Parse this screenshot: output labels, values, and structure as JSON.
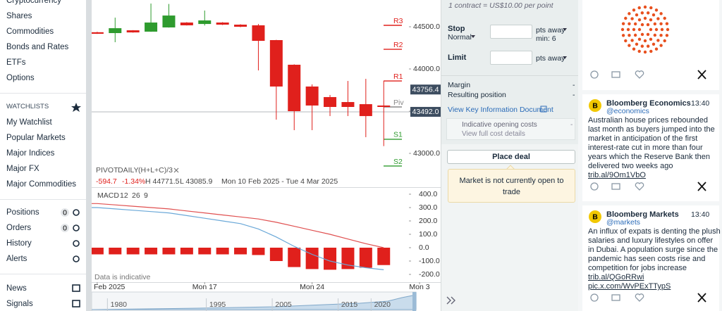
{
  "sidebar": {
    "markets": [
      "Cryptocurrency",
      "Shares",
      "Commodities",
      "Bonds and Rates",
      "ETFs",
      "Options"
    ],
    "watchlists_title": "WATCHLISTS",
    "watchlists": [
      "My Watchlist",
      "Popular Markets",
      "Major Indices",
      "Major FX",
      "Major Commodities"
    ],
    "account": [
      {
        "label": "Positions",
        "count": 0
      },
      {
        "label": "Orders",
        "count": 0
      },
      {
        "label": "History"
      },
      {
        "label": "Alerts"
      }
    ],
    "tools": [
      "News",
      "Signals"
    ]
  },
  "chart_data": {
    "type": "candlestick",
    "up_color": "#2e9b2e",
    "down_color": "#e0201c",
    "candles": {
      "open": [
        44435,
        44425,
        44458,
        44442,
        44492,
        44550,
        44533,
        44550,
        44525,
        44517,
        44342,
        44050,
        43792,
        43667,
        43608,
        43583,
        43567
      ],
      "high": [
        44440,
        44608,
        44460,
        44775,
        44770,
        44555,
        44692,
        44555,
        44530,
        44533,
        44345,
        44055,
        43817,
        43692,
        43858,
        43883,
        43858
      ],
      "low": [
        44415,
        44317,
        44430,
        44440,
        44490,
        44515,
        44515,
        44520,
        44495,
        43983,
        43400,
        43275,
        43275,
        43442,
        43442,
        43192,
        43086
      ],
      "close": [
        44417,
        44483,
        44433,
        44550,
        44633,
        44517,
        44575,
        44525,
        44500,
        44333,
        43792,
        43500,
        43567,
        43550,
        43550,
        43442,
        43550
      ]
    },
    "xlim": [
      -0.31,
      19.18
    ],
    "xticks": [
      {
        "value": 0,
        "label": "Feb 2025"
      },
      {
        "value": 6,
        "label": "Mon 17"
      },
      {
        "value": 12,
        "label": "Mon 24"
      },
      {
        "value": 18,
        "label": "Mon 3"
      }
    ],
    "ylim": [
      42608,
      44817
    ],
    "yticks": [
      {
        "value": 44500,
        "label": "44500.0"
      },
      {
        "value": 44000,
        "label": "44000.0"
      },
      {
        "value": 43500,
        "label": "43500.0"
      },
      {
        "value": 43000,
        "label": "43000.0"
      }
    ],
    "pivots": [
      {
        "name": "R3",
        "value": 44517,
        "color": "#e0201c"
      },
      {
        "name": "R2",
        "value": 44233,
        "color": "#e0201c"
      },
      {
        "name": "R1",
        "value": 43858,
        "color": "#e0201c"
      },
      {
        "name": "Piv",
        "value": 43550,
        "color": "#888888"
      },
      {
        "name": "S1",
        "value": 43167,
        "color": "#2e9b2e"
      },
      {
        "name": "S2",
        "value": 42850,
        "color": "#2e9b2e"
      }
    ],
    "price_tags": [
      {
        "value": 43756.4,
        "label": "43756.4"
      },
      {
        "value": 43492.0,
        "label": "43492.0"
      }
    ],
    "indicator": {
      "name": "PIVOT",
      "period": "DAILY",
      "formula": "(H+L+C)/3"
    },
    "change": {
      "value": -594.7,
      "label": "-594.7"
    },
    "change_pct": {
      "value": -1.34,
      "label": "-1.34%"
    },
    "high": {
      "value": 44771.5,
      "label": "H 44771.5"
    },
    "low": {
      "value": 43085.9,
      "label": "L 43085.9"
    },
    "range": "Mon 10 Feb 2025 - Tue 4 Mar 2025",
    "note": "Data is indicative",
    "macd": {
      "title": "MACD",
      "params": [
        12,
        26,
        9
      ],
      "histogram": [
        -50,
        -50,
        -50,
        -50,
        -50,
        -50,
        -50,
        -50,
        -50,
        -55,
        -100,
        -145,
        -160,
        -165,
        -160,
        -150,
        -130
      ],
      "macd_line": [
        300,
        290,
        280,
        270,
        260,
        240,
        220,
        200,
        180,
        140,
        80,
        10,
        -50,
        -100,
        -130,
        -150,
        -165
      ],
      "signal_line": [
        330,
        320,
        310,
        300,
        290,
        275,
        260,
        245,
        230,
        215,
        190,
        160,
        130,
        100,
        65,
        30,
        0
      ],
      "macd_color": "#6aa8d8",
      "signal_color": "#e05050",
      "ylim": [
        -252.6,
        442.1
      ],
      "yticks": [
        {
          "value": 400,
          "label": "400.0"
        },
        {
          "value": 300,
          "label": "300.0"
        },
        {
          "value": 200,
          "label": "200.0"
        },
        {
          "value": 100,
          "label": "100.0"
        },
        {
          "value": 0,
          "label": "0.0"
        },
        {
          "value": -100,
          "label": "-100.0"
        },
        {
          "value": -200,
          "label": "-200.0"
        }
      ]
    },
    "navigator": {
      "xlim": [
        1975.9,
        2025.1
      ],
      "xticks": [
        1980,
        1995,
        2005,
        2015,
        2020
      ]
    }
  },
  "deal": {
    "contract": "1 contract = US$10.00 per point",
    "stop": "Stop",
    "stop_type": "Normal",
    "stop_unit": "pts away",
    "stop_min": "min: 6",
    "limit": "Limit",
    "limit_unit": "pts away",
    "margin": "Margin",
    "margin_value": "-",
    "resulting": "Resulting position",
    "resulting_value": "-",
    "kid": "View Key Information Document",
    "costs": "Indicative opening costs",
    "costs_link": "View full cost details",
    "costs_value": "-",
    "button": "Place deal",
    "notice": "Market is not currently open to trade"
  },
  "tweets": [
    {
      "avatar": "B",
      "author": "Bloomberg Economics",
      "handle": "@economics",
      "time": "13:40",
      "text": "Australian house prices rebounded last month as buyers jumped into the market in anticipation of the first interest-rate cut in more than four years which the Reserve Bank then delivered two weeks ago",
      "links": [
        "trib.al/9Om1VbO"
      ]
    },
    {
      "avatar": "B",
      "author": "Bloomberg Markets",
      "handle": "@markets",
      "time": "13:40",
      "text": "An influx of expats is denting the plush salaries and luxury lifestyles on offer in Dubai. A population surge since the pandemic has seen costs rise and competition for jobs increase",
      "links": [
        "trib.al/QGoRRwi",
        "pic.x.com/WvPExTTypS"
      ]
    }
  ]
}
